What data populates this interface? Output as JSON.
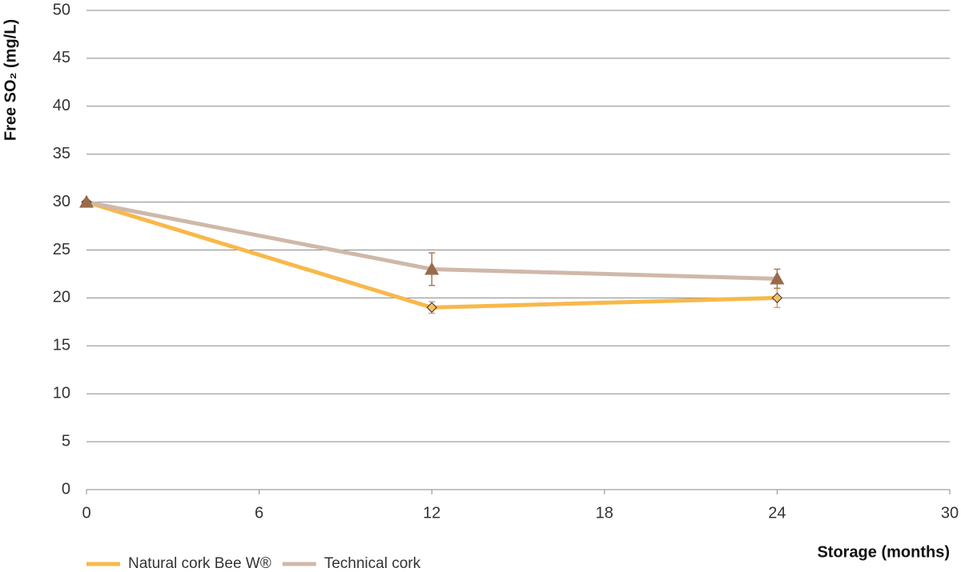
{
  "chart_data": {
    "type": "line",
    "x_label": "Storage (months)",
    "y_label": "Free SO₂ (mg/L)",
    "x": [
      0,
      12,
      24
    ],
    "series": [
      {
        "name": "Natural cork Bee W®",
        "color": "#f8b84a",
        "marker": "diamond",
        "marker_color": "#f5c060",
        "error_color": "#c9a27e",
        "values": [
          30,
          19,
          20
        ],
        "errors": [
          null,
          0.6,
          1.0
        ]
      },
      {
        "name": "Technical cork",
        "color": "#cfb8a9",
        "marker": "triangle",
        "marker_color": "#9b6a4c",
        "error_color": "#a57b5c",
        "values": [
          30,
          23,
          22
        ],
        "errors": [
          null,
          1.7,
          1.0
        ]
      }
    ],
    "xlim": [
      0,
      30
    ],
    "xticks": [
      0,
      6,
      12,
      18,
      24,
      30
    ],
    "ylim": [
      0,
      50
    ],
    "yticks": [
      0,
      5,
      10,
      15,
      20,
      25,
      30,
      35,
      40,
      45,
      50
    ],
    "grid": true,
    "legend": "bottom-left"
  }
}
